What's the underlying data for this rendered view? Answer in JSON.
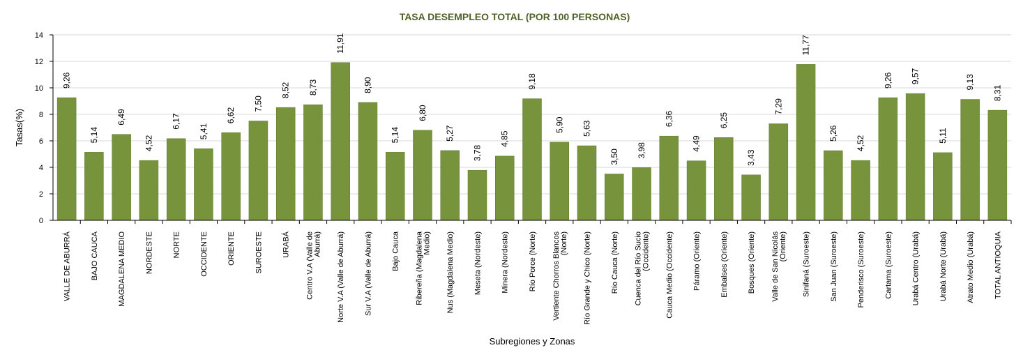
{
  "chart_data": {
    "type": "bar",
    "title": "TASA DESEMPLEO TOTAL (POR 100 PERSONAS)",
    "xlabel": "Subregiones y Zonas",
    "ylabel": "Tasas(%)",
    "ylim": [
      0,
      14
    ],
    "yticks": [
      0,
      2,
      4,
      6,
      8,
      10,
      12,
      14
    ],
    "grid": true,
    "legend": false,
    "categories": [
      [
        "VALLE DE ABURRÁ"
      ],
      [
        "BAJO CAUCA"
      ],
      [
        "MAGDALENA MEDIO"
      ],
      [
        "NORDESTE"
      ],
      [
        "NORTE"
      ],
      [
        "OCCIDENTE"
      ],
      [
        "ORIENTE"
      ],
      [
        "SUROESTE"
      ],
      [
        "URABÁ"
      ],
      [
        "Centro V.A (Valle de",
        "Aburrá)"
      ],
      [
        "Norte V.A (Valle de Aburrá)"
      ],
      [
        "Sur V.A (Valle de Aburrá)"
      ],
      [
        "Bajo Cauca"
      ],
      [
        "Ribereña (Magdalena",
        "Medio)"
      ],
      [
        "Nus (Magdalena Medio)"
      ],
      [
        "Meseta (Nordeste)"
      ],
      [
        "Minera (Nordeste)"
      ],
      [
        "Río Porce (Norte)"
      ],
      [
        "Vertiente Chorros Blancos",
        "(Norte)"
      ],
      [
        "Río Grande y Chico (Norte)"
      ],
      [
        "Río Cauca (Norte)"
      ],
      [
        "Cuenca del Río Sucio",
        "(Occidente)"
      ],
      [
        "Cauca Medio (Occidente)"
      ],
      [
        "Páramo (Oriente)"
      ],
      [
        "Embalses (Oriente)"
      ],
      [
        "Bosques (Oriente)"
      ],
      [
        "Valle de San Nicolás",
        "(Oriente)"
      ],
      [
        "Sinifaná (Suroeste)"
      ],
      [
        "San Juan (Suroeste)"
      ],
      [
        "Penderisco (Suroeste)"
      ],
      [
        "Cartama (Suroeste)"
      ],
      [
        "Urabá Centro (Urabá)"
      ],
      [
        "Urabá Norte (Urabá)"
      ],
      [
        "Atrato Medio (Urabá)"
      ],
      [
        "TOTAL ANTIOQUIA"
      ]
    ],
    "values": [
      9.26,
      5.14,
      6.49,
      4.52,
      6.17,
      5.41,
      6.62,
      7.5,
      8.52,
      8.73,
      11.91,
      8.9,
      5.14,
      6.8,
      5.27,
      3.78,
      4.85,
      9.18,
      5.9,
      5.63,
      3.5,
      3.98,
      6.36,
      4.49,
      6.25,
      3.43,
      7.29,
      11.77,
      5.26,
      4.52,
      9.26,
      9.57,
      5.11,
      9.13,
      8.31
    ],
    "value_labels": [
      "9,26",
      "5,14",
      "6,49",
      "4,52",
      "6,17",
      "5,41",
      "6,62",
      "7,50",
      "8,52",
      "8,73",
      "11,91",
      "8,90",
      "5,14",
      "6,80",
      "5,27",
      "3,78",
      "4,85",
      "9,18",
      "5,90",
      "5,63",
      "3,50",
      "3,98",
      "6,36",
      "4,49",
      "6,25",
      "3,43",
      "7,29",
      "11,77",
      "5,26",
      "4,52",
      "9,26",
      "9,57",
      "5,11",
      "9,13",
      "8,31"
    ],
    "colors": {
      "bar": "#77933C",
      "bar_edge": "#5E7A2A",
      "title": "#4F6228",
      "grid": "#D9D9D9",
      "axis": "#000000"
    }
  }
}
